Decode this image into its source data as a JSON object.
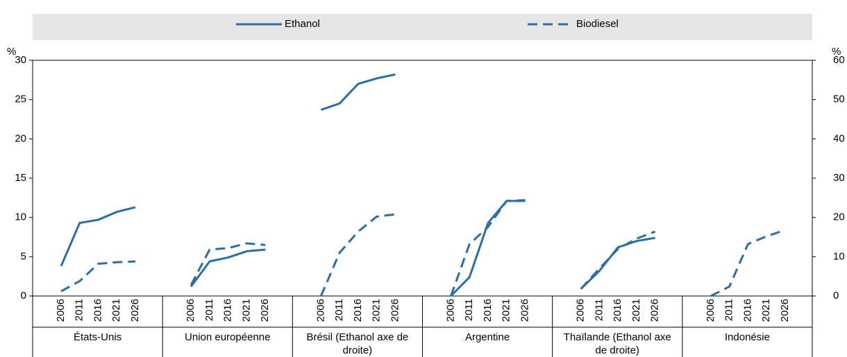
{
  "chart_data": {
    "type": "line",
    "ylabel": "%",
    "y2label": "%",
    "ylim": [
      0,
      30
    ],
    "yticks": [
      0,
      5,
      10,
      15,
      20,
      25,
      30
    ],
    "y2lim": [
      0,
      60
    ],
    "y2ticks": [
      0,
      10,
      20,
      30,
      40,
      50,
      60
    ],
    "x": [
      2006,
      2011,
      2016,
      2021,
      2026
    ],
    "categories": [
      "États-Unis",
      "Union européenne",
      "Brésil (Ethanol axe de droite)",
      "Argentine",
      "Thaïlande (Ethanol axe de droite)",
      "Indonésie"
    ],
    "legend": "top",
    "series": [
      {
        "name": "Ethanol",
        "color": "#2a6ea6",
        "dash": "solid",
        "axis": [
          "y",
          "y",
          "y2",
          "y",
          "y2",
          "y"
        ],
        "values": [
          [
            3.8,
            9.3,
            9.7,
            10.7,
            11.3
          ],
          [
            1.2,
            4.4,
            4.9,
            5.7,
            5.9
          ],
          [
            47.4,
            49,
            54,
            55.4,
            56.4
          ],
          [
            0,
            2.4,
            9.3,
            12.1,
            12.1
          ],
          [
            1.8,
            6.4,
            12.4,
            14,
            14.8
          ],
          [
            null,
            null,
            null,
            null,
            null
          ]
        ]
      },
      {
        "name": "Biodiesel",
        "color": "#2a6ea6",
        "dash": "dashed",
        "axis": [
          "y",
          "y",
          "y",
          "y",
          "y",
          "y"
        ],
        "values": [
          [
            0.6,
            1.9,
            4.1,
            4.3,
            4.4
          ],
          [
            1.4,
            5.9,
            6.1,
            6.7,
            6.5
          ],
          [
            0,
            5.5,
            8.2,
            10.1,
            10.4
          ],
          [
            0,
            6.6,
            8.8,
            12.1,
            12.2
          ],
          [
            0.9,
            3.5,
            6.0,
            7.3,
            8.2
          ],
          [
            0,
            1.2,
            6.6,
            7.6,
            8.4
          ]
        ]
      }
    ]
  }
}
